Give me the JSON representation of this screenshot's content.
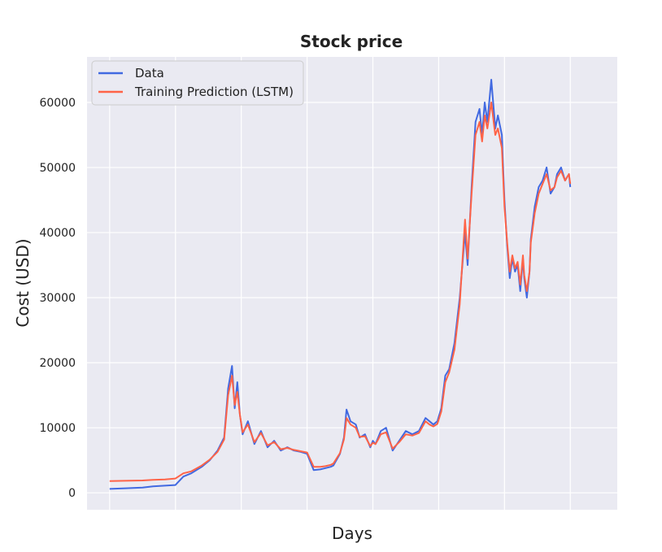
{
  "chart_data": {
    "type": "line",
    "title": "Stock price",
    "xlabel": "Days",
    "ylabel": "Cost (USD)",
    "xlim": [
      -172,
      3857
    ],
    "ylim": [
      -2600,
      67000
    ],
    "yticks": [
      0,
      10000,
      20000,
      30000,
      40000,
      50000,
      60000
    ],
    "ytick_labels": [
      "0",
      "10000",
      "20000",
      "30000",
      "40000",
      "50000",
      "60000"
    ],
    "xgrid": [
      0,
      500,
      1000,
      1500,
      2000,
      2500,
      3000,
      3500
    ],
    "grid": true,
    "background": "#eaeaf2",
    "legend": "top-left",
    "series": [
      {
        "name": "Data",
        "color": "#4169e1",
        "x": [
          0,
          120,
          250,
          330,
          420,
          500,
          560,
          620,
          700,
          760,
          820,
          870,
          900,
          930,
          950,
          970,
          990,
          1010,
          1050,
          1100,
          1150,
          1200,
          1250,
          1300,
          1350,
          1400,
          1450,
          1500,
          1550,
          1600,
          1640,
          1680,
          1700,
          1750,
          1780,
          1800,
          1830,
          1870,
          1900,
          1940,
          1980,
          2000,
          2020,
          2040,
          2060,
          2100,
          2150,
          2200,
          2250,
          2300,
          2350,
          2400,
          2430,
          2460,
          2490,
          2520,
          2550,
          2580,
          2620,
          2660,
          2700,
          2720,
          2750,
          2780,
          2810,
          2830,
          2850,
          2870,
          2900,
          2930,
          2950,
          2980,
          3000,
          3020,
          3040,
          3060,
          3080,
          3100,
          3120,
          3140,
          3150,
          3170,
          3190,
          3200,
          3230,
          3260,
          3290,
          3320,
          3350,
          3380,
          3400,
          3430,
          3460,
          3490,
          3500
        ],
        "values": [
          600,
          700,
          800,
          1000,
          1100,
          1200,
          2500,
          3000,
          4000,
          5000,
          6500,
          8500,
          16000,
          19500,
          13000,
          17000,
          12000,
          9000,
          11000,
          7500,
          9500,
          7000,
          8000,
          6500,
          7000,
          6500,
          6300,
          6000,
          3500,
          3600,
          3800,
          4000,
          4200,
          6000,
          8500,
          12800,
          11000,
          10500,
          8500,
          9000,
          7000,
          8000,
          7500,
          8500,
          9500,
          10000,
          6500,
          8000,
          9500,
          9000,
          9500,
          11500,
          11000,
          10500,
          11000,
          13000,
          18000,
          19000,
          23000,
          30000,
          40000,
          35000,
          47000,
          57000,
          59000,
          55000,
          60000,
          57000,
          63500,
          56000,
          58000,
          55000,
          45000,
          38000,
          33000,
          36000,
          34000,
          35000,
          31000,
          36000,
          33000,
          30000,
          34000,
          39000,
          44000,
          47000,
          48000,
          50000,
          46000,
          47000,
          49000,
          50000,
          48000,
          49000,
          47000
        ]
      },
      {
        "name": "Training Prediction (LSTM)",
        "color": "#ff6347",
        "x": [
          0,
          120,
          250,
          330,
          420,
          500,
          560,
          620,
          700,
          760,
          820,
          870,
          900,
          930,
          950,
          970,
          990,
          1010,
          1050,
          1100,
          1150,
          1200,
          1250,
          1300,
          1350,
          1400,
          1450,
          1500,
          1550,
          1600,
          1640,
          1680,
          1700,
          1750,
          1780,
          1800,
          1830,
          1870,
          1900,
          1940,
          1980,
          2000,
          2020,
          2040,
          2060,
          2100,
          2150,
          2200,
          2250,
          2300,
          2350,
          2400,
          2430,
          2460,
          2490,
          2520,
          2550,
          2580,
          2620,
          2660,
          2700,
          2720,
          2750,
          2780,
          2810,
          2830,
          2850,
          2870,
          2900,
          2930,
          2950,
          2980,
          3000,
          3020,
          3040,
          3060,
          3080,
          3100,
          3120,
          3140,
          3150,
          3170,
          3190,
          3200,
          3230,
          3260,
          3290,
          3320,
          3350,
          3380,
          3400,
          3430,
          3460,
          3490,
          3500
        ],
        "values": [
          1800,
          1850,
          1900,
          2000,
          2050,
          2200,
          3000,
          3300,
          4200,
          5100,
          6300,
          8200,
          15000,
          18000,
          13500,
          15500,
          12000,
          9300,
          10500,
          7800,
          9200,
          7300,
          7800,
          6700,
          6900,
          6600,
          6400,
          6200,
          4000,
          4000,
          4100,
          4300,
          4500,
          6100,
          8200,
          11500,
          10500,
          10000,
          8600,
          8700,
          7200,
          7700,
          7500,
          8200,
          9000,
          9300,
          6800,
          7800,
          9000,
          8800,
          9200,
          11000,
          10500,
          10200,
          10600,
          12500,
          17000,
          18500,
          22000,
          29000,
          42000,
          36000,
          46000,
          55000,
          57000,
          54000,
          58000,
          56000,
          60000,
          55000,
          56000,
          53000,
          44000,
          38500,
          34000,
          36500,
          34500,
          35500,
          32000,
          36500,
          33500,
          31000,
          34000,
          38500,
          43000,
          46000,
          47500,
          49000,
          46500,
          47000,
          48500,
          49500,
          48000,
          49000,
          47500
        ]
      }
    ]
  }
}
